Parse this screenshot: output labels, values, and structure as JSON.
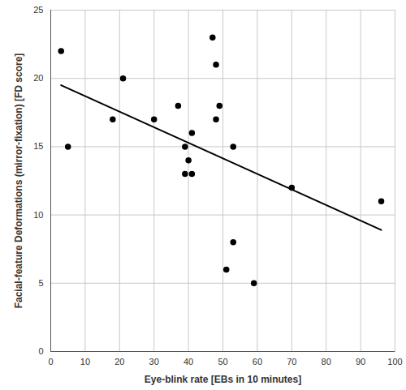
{
  "chart_data": {
    "type": "scatter",
    "x_label": "Eye-blink rate [EBs in 10 minutes]",
    "y_label": "Facial-feature Deformations (mirror-fixation) [FD score]",
    "x": [
      3,
      5,
      18,
      21,
      30,
      37,
      39,
      39,
      40,
      41,
      41,
      47,
      48,
      48,
      49,
      51,
      53,
      53,
      59,
      70,
      96
    ],
    "values": [
      22,
      15,
      17,
      20,
      17,
      18,
      15,
      13,
      14,
      16,
      13,
      23,
      17,
      21,
      18,
      6,
      15,
      8,
      5,
      12,
      11
    ],
    "trend_line": {
      "x": [
        3,
        96
      ],
      "y": [
        19.5,
        8.9
      ]
    },
    "color": "#000000",
    "marker": "circle",
    "xlim": [
      0,
      100
    ],
    "ylim": [
      0,
      25
    ],
    "xticks": [
      0,
      10,
      20,
      30,
      40,
      50,
      60,
      70,
      80,
      90,
      100
    ],
    "yticks": [
      0,
      5,
      10,
      15,
      20,
      25
    ],
    "grid": true
  }
}
